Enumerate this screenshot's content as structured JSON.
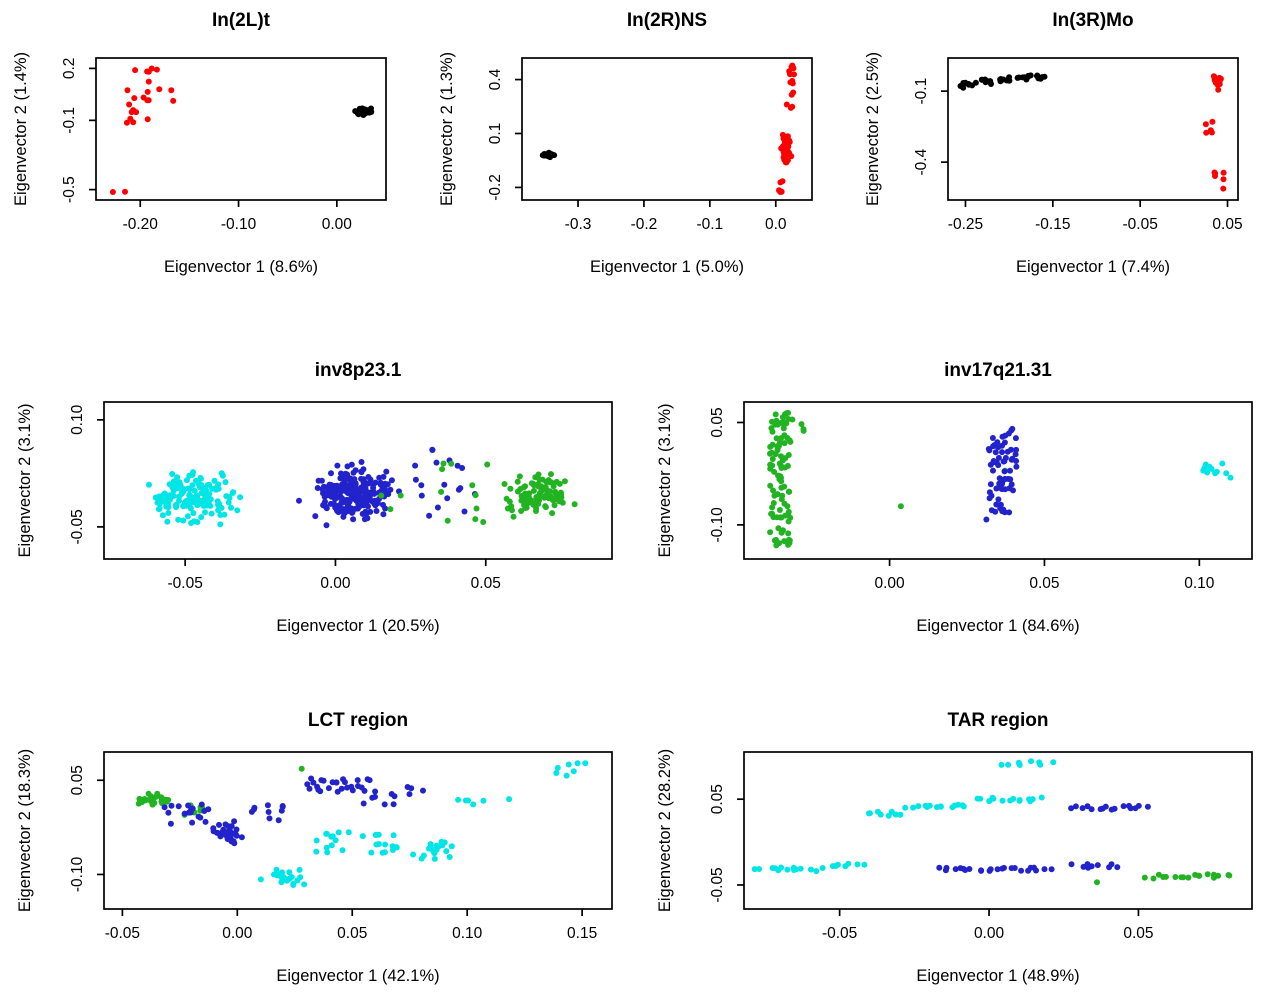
{
  "figure": {
    "background": "#ffffff",
    "description": "Seven R-style PCA scatter plots of eigenvector 1 vs eigenvector 2 for genomic inversion regions"
  },
  "palette": {
    "red": "#ff0000",
    "black": "#000000",
    "cyan": "#00e5e6",
    "blue": "#2323cc",
    "green": "#22b322"
  },
  "chart_data": [
    {
      "type": "scatter",
      "title": "In(2L)t",
      "xlabel": "Eigenvector 1 (8.6%)",
      "ylabel": "Eigenvector 2 (1.4%)",
      "xlim": [
        -0.245,
        0.05
      ],
      "ylim": [
        -0.56,
        0.26
      ],
      "xticks": [
        -0.2,
        -0.1,
        0.0
      ],
      "xtick_labels": [
        "-0.20",
        "-0.10",
        "0.00"
      ],
      "yticks": [
        -0.5,
        -0.1,
        0.2
      ],
      "ytick_labels": [
        "-0.5",
        "-0.1",
        "0.2"
      ],
      "grid": false,
      "legend": "none",
      "clusters": [
        {
          "name": "inverted-red",
          "color": "#ff0000",
          "blobs": [
            {
              "cx": -0.192,
              "cy": 0.16,
              "rx": 0.016,
              "ry": 0.05,
              "n": 6,
              "dist": "uniform"
            },
            {
              "cx": -0.2,
              "cy": -0.02,
              "rx": 0.02,
              "ry": 0.1,
              "n": 14,
              "dist": "uniform"
            },
            {
              "cx": -0.173,
              "cy": 0.04,
              "rx": 0.008,
              "ry": 0.05,
              "n": 3,
              "dist": "uniform"
            },
            {
              "cx": -0.222,
              "cy": -0.51,
              "rx": 0.014,
              "ry": 0.012,
              "n": 2,
              "dist": "uniform"
            }
          ]
        },
        {
          "name": "standard-black",
          "color": "#000000",
          "blobs": [
            {
              "cx": 0.028,
              "cy": -0.05,
              "rx": 0.014,
              "ry": 0.034,
              "n": 50,
              "dist": "gauss"
            }
          ]
        }
      ]
    },
    {
      "type": "scatter",
      "title": "In(2R)NS",
      "xlabel": "Eigenvector 1 (5.0%)",
      "ylabel": "Eigenvector 2 (1.3%)",
      "xlim": [
        -0.385,
        0.055
      ],
      "ylim": [
        -0.27,
        0.52
      ],
      "xticks": [
        -0.3,
        -0.2,
        -0.1,
        0.0
      ],
      "xtick_labels": [
        "-0.3",
        "-0.2",
        "-0.1",
        "0.0"
      ],
      "yticks": [
        -0.2,
        0.1,
        0.4
      ],
      "ytick_labels": [
        "-0.2",
        "0.1",
        "0.4"
      ],
      "grid": false,
      "legend": "none",
      "clusters": [
        {
          "name": "standard-black",
          "color": "#000000",
          "blobs": [
            {
              "cx": -0.345,
              "cy": -0.02,
              "rx": 0.014,
              "ry": 0.02,
              "n": 28,
              "dist": "gauss"
            }
          ]
        },
        {
          "name": "inverted-red",
          "color": "#ff0000",
          "blobs": [
            {
              "cx": 0.015,
              "cy": 0.02,
              "rx": 0.012,
              "ry": 0.13,
              "n": 48,
              "dist": "gauss"
            },
            {
              "cx": 0.02,
              "cy": 0.33,
              "rx": 0.008,
              "ry": 0.1,
              "n": 10,
              "dist": "uniform"
            },
            {
              "cx": 0.022,
              "cy": 0.47,
              "rx": 0.005,
              "ry": 0.025,
              "n": 4,
              "dist": "uniform"
            },
            {
              "cx": 0.012,
              "cy": -0.2,
              "rx": 0.008,
              "ry": 0.035,
              "n": 6,
              "dist": "uniform"
            }
          ]
        }
      ]
    },
    {
      "type": "scatter",
      "title": "In(3R)Mo",
      "xlabel": "Eigenvector 1 (7.4%)",
      "ylabel": "Eigenvector 2 (2.5%)",
      "xlim": [
        -0.27,
        0.062
      ],
      "ylim": [
        -0.56,
        0.04
      ],
      "xticks": [
        -0.25,
        -0.15,
        -0.05,
        0.05
      ],
      "xtick_labels": [
        "-0.25",
        "-0.15",
        "-0.05",
        "0.05"
      ],
      "yticks": [
        -0.4,
        -0.1
      ],
      "ytick_labels": [
        "-0.4",
        "-0.1"
      ],
      "grid": false,
      "legend": "none",
      "clusters": [
        {
          "name": "standard-black",
          "color": "#000000",
          "blobs": [
            {
              "cx": -0.247,
              "cy": -0.075,
              "rx": 0.009,
              "ry": 0.013,
              "n": 9,
              "dist": "uniform"
            },
            {
              "cx": -0.227,
              "cy": -0.06,
              "rx": 0.007,
              "ry": 0.01,
              "n": 7,
              "dist": "uniform"
            },
            {
              "cx": -0.205,
              "cy": -0.05,
              "rx": 0.008,
              "ry": 0.01,
              "n": 8,
              "dist": "uniform"
            },
            {
              "cx": -0.182,
              "cy": -0.042,
              "rx": 0.009,
              "ry": 0.009,
              "n": 9,
              "dist": "uniform"
            },
            {
              "cx": -0.163,
              "cy": -0.04,
              "rx": 0.006,
              "ry": 0.008,
              "n": 6,
              "dist": "uniform"
            }
          ]
        },
        {
          "name": "inverted-red",
          "color": "#ff0000",
          "blobs": [
            {
              "cx": 0.037,
              "cy": -0.055,
              "rx": 0.009,
              "ry": 0.045,
              "n": 16,
              "dist": "gauss"
            },
            {
              "cx": 0.032,
              "cy": -0.26,
              "rx": 0.007,
              "ry": 0.035,
              "n": 5,
              "dist": "uniform"
            },
            {
              "cx": 0.042,
              "cy": -0.47,
              "rx": 0.007,
              "ry": 0.045,
              "n": 6,
              "dist": "uniform"
            }
          ]
        }
      ]
    },
    {
      "type": "scatter",
      "title": "inv8p23.1",
      "xlabel": "Eigenvector 1 (20.5%)",
      "ylabel": "Eigenvector 2 (3.1%)",
      "xlim": [
        -0.077,
        0.092
      ],
      "ylim": [
        -0.095,
        0.125
      ],
      "xticks": [
        -0.05,
        0.0,
        0.05
      ],
      "xtick_labels": [
        "-0.05",
        "0.00",
        "0.05"
      ],
      "yticks": [
        -0.05,
        0.1
      ],
      "ytick_labels": [
        "-0.05",
        "0.10"
      ],
      "grid": false,
      "legend": "none",
      "clusters": [
        {
          "name": "group-cyan",
          "color": "#00e5e6",
          "blobs": [
            {
              "cx": -0.047,
              "cy": -0.01,
              "rx": 0.021,
              "ry": 0.052,
              "n": 150,
              "dist": "gauss"
            }
          ]
        },
        {
          "name": "group-blue",
          "color": "#2323cc",
          "blobs": [
            {
              "cx": 0.006,
              "cy": -0.004,
              "rx": 0.021,
              "ry": 0.058,
              "n": 240,
              "dist": "gauss"
            },
            {
              "cx": 0.036,
              "cy": 0.01,
              "rx": 0.012,
              "ry": 0.05,
              "n": 18,
              "dist": "uniform"
            }
          ]
        },
        {
          "name": "group-green",
          "color": "#22b322",
          "blobs": [
            {
              "cx": 0.068,
              "cy": -0.005,
              "rx": 0.018,
              "ry": 0.05,
              "n": 95,
              "dist": "gauss"
            },
            {
              "cx": 0.046,
              "cy": 0.0,
              "rx": 0.011,
              "ry": 0.05,
              "n": 12,
              "dist": "uniform"
            },
            {
              "cx": 0.019,
              "cy": -0.015,
              "rx": 0.004,
              "ry": 0.04,
              "n": 3,
              "dist": "uniform"
            }
          ]
        }
      ]
    },
    {
      "type": "scatter",
      "title": "inv17q21.31",
      "xlabel": "Eigenvector 1 (84.6%)",
      "ylabel": "Eigenvector 2 (3.1%)",
      "xlim": [
        -0.047,
        0.117
      ],
      "ylim": [
        -0.15,
        0.08
      ],
      "xticks": [
        0.0,
        0.05,
        0.1
      ],
      "xtick_labels": [
        "0.00",
        "0.05",
        "0.10"
      ],
      "yticks": [
        -0.1,
        0.05
      ],
      "ytick_labels": [
        "-0.10",
        "0.05"
      ],
      "grid": false,
      "legend": "none",
      "clusters": [
        {
          "name": "group-green",
          "color": "#22b322",
          "blobs": [
            {
              "cx": -0.0355,
              "cy": -0.035,
              "rx": 0.0035,
              "ry": 0.1,
              "n": 100,
              "dist": "uniform"
            },
            {
              "cx": -0.029,
              "cy": 0.047,
              "rx": 0.003,
              "ry": 0.01,
              "n": 4,
              "dist": "uniform"
            },
            {
              "cx": 0.004,
              "cy": -0.073,
              "rx": 0.001,
              "ry": 0.001,
              "n": 1
            },
            {
              "cx": 0.0375,
              "cy": -0.02,
              "rx": 0.001,
              "ry": 0.001,
              "n": 1
            }
          ]
        },
        {
          "name": "group-blue",
          "color": "#2323cc",
          "blobs": [
            {
              "cx": 0.0365,
              "cy": -0.02,
              "rx": 0.0045,
              "ry": 0.062,
              "n": 70,
              "dist": "uniform"
            },
            {
              "cx": 0.031,
              "cy": -0.092,
              "rx": 0.001,
              "ry": 0.001,
              "n": 1
            }
          ]
        },
        {
          "name": "group-cyan",
          "color": "#00e5e6",
          "blobs": [
            {
              "cx": 0.106,
              "cy": -0.02,
              "rx": 0.005,
              "ry": 0.011,
              "n": 14,
              "dist": "uniform"
            }
          ]
        }
      ]
    },
    {
      "type": "scatter",
      "title": "LCT region",
      "xlabel": "Eigenvector 1 (42.1%)",
      "ylabel": "Eigenvector 2 (18.3%)",
      "xlim": [
        -0.058,
        0.163
      ],
      "ylim": [
        -0.155,
        0.095
      ],
      "xticks": [
        -0.05,
        0.0,
        0.05,
        0.1,
        0.15
      ],
      "xtick_labels": [
        "-0.05",
        "0.00",
        "0.05",
        "0.10",
        "0.15"
      ],
      "yticks": [
        -0.1,
        0.05
      ],
      "ytick_labels": [
        "-0.10",
        "0.05"
      ],
      "grid": false,
      "legend": "none",
      "clusters": [
        {
          "name": "group-green",
          "color": "#22b322",
          "blobs": [
            {
              "cx": -0.036,
              "cy": 0.018,
              "rx": 0.013,
              "ry": 0.016,
              "n": 28,
              "dist": "gauss"
            },
            {
              "cx": -0.018,
              "cy": 0.002,
              "rx": 0.006,
              "ry": 0.008,
              "n": 6,
              "dist": "uniform"
            },
            {
              "cx": 0.028,
              "cy": 0.068,
              "rx": 0.001,
              "ry": 0.001,
              "n": 1
            }
          ]
        },
        {
          "name": "group-blue",
          "color": "#2323cc",
          "blobs": [
            {
              "cx": -0.022,
              "cy": -0.006,
              "rx": 0.01,
              "ry": 0.018,
              "n": 18,
              "dist": "uniform"
            },
            {
              "cx": -0.004,
              "cy": -0.035,
              "rx": 0.012,
              "ry": 0.028,
              "n": 34,
              "dist": "gauss"
            },
            {
              "cx": 0.012,
              "cy": -0.002,
              "rx": 0.008,
              "ry": 0.014,
              "n": 10,
              "dist": "uniform"
            },
            {
              "cx": 0.045,
              "cy": 0.042,
              "rx": 0.016,
              "ry": 0.011,
              "n": 26,
              "dist": "uniform"
            },
            {
              "cx": 0.062,
              "cy": 0.02,
              "rx": 0.008,
              "ry": 0.014,
              "n": 8,
              "dist": "uniform"
            },
            {
              "cx": 0.08,
              "cy": 0.034,
              "rx": 0.006,
              "ry": 0.008,
              "n": 4,
              "dist": "uniform"
            }
          ]
        },
        {
          "name": "group-cyan",
          "color": "#00e5e6",
          "blobs": [
            {
              "cx": 0.02,
              "cy": -0.105,
              "rx": 0.014,
              "ry": 0.028,
              "n": 22,
              "dist": "gauss"
            },
            {
              "cx": 0.052,
              "cy": -0.05,
              "rx": 0.018,
              "ry": 0.02,
              "n": 28,
              "dist": "uniform"
            },
            {
              "cx": 0.085,
              "cy": -0.062,
              "rx": 0.013,
              "ry": 0.026,
              "n": 20,
              "dist": "gauss"
            },
            {
              "cx": 0.1,
              "cy": 0.02,
              "rx": 0.008,
              "ry": 0.011,
              "n": 5,
              "dist": "uniform"
            },
            {
              "cx": 0.145,
              "cy": 0.062,
              "rx": 0.007,
              "ry": 0.017,
              "n": 7,
              "dist": "uniform"
            },
            {
              "cx": 0.118,
              "cy": 0.02,
              "rx": 0.001,
              "ry": 0.001,
              "n": 1
            }
          ]
        }
      ]
    },
    {
      "type": "scatter",
      "title": "TAR region",
      "xlabel": "Eigenvector 1 (48.9%)",
      "ylabel": "Eigenvector 2 (28.2%)",
      "xlim": [
        -0.082,
        0.088
      ],
      "ylim": [
        -0.078,
        0.105
      ],
      "xticks": [
        -0.05,
        0.0,
        0.05
      ],
      "xtick_labels": [
        "-0.05",
        "0.00",
        "0.05"
      ],
      "yticks": [
        -0.05,
        0.05
      ],
      "ytick_labels": [
        "-0.05",
        "0.05"
      ],
      "grid": false,
      "legend": "none",
      "clusters": [
        {
          "name": "group-cyan",
          "color": "#00e5e6",
          "blobs": [
            {
              "x0": -0.077,
              "x1": -0.057,
              "y": -0.032,
              "n": 14
            },
            {
              "x0": -0.053,
              "x1": -0.043,
              "y": -0.026,
              "n": 7
            },
            {
              "x0": -0.04,
              "x1": -0.029,
              "y": 0.033,
              "n": 8
            },
            {
              "x0": -0.027,
              "x1": -0.007,
              "y": 0.042,
              "n": 14
            },
            {
              "x0": -0.004,
              "x1": 0.017,
              "y": 0.05,
              "n": 14
            },
            {
              "x0": 0.004,
              "x1": 0.02,
              "y": 0.092,
              "n": 8
            }
          ]
        },
        {
          "name": "group-blue",
          "color": "#2323cc",
          "blobs": [
            {
              "x0": -0.017,
              "x1": 0.02,
              "y": -0.032,
              "n": 24
            },
            {
              "x0": 0.028,
              "x1": 0.052,
              "y": 0.04,
              "n": 16
            },
            {
              "x0": 0.029,
              "x1": 0.042,
              "y": -0.028,
              "n": 9
            }
          ]
        },
        {
          "name": "group-green",
          "color": "#22b322",
          "blobs": [
            {
              "x0": 0.053,
              "x1": 0.081,
              "y": -0.04,
              "n": 18
            },
            {
              "cx": 0.036,
              "cy": -0.047,
              "rx": 0.001,
              "ry": 0.001,
              "n": 1
            }
          ]
        }
      ]
    }
  ]
}
